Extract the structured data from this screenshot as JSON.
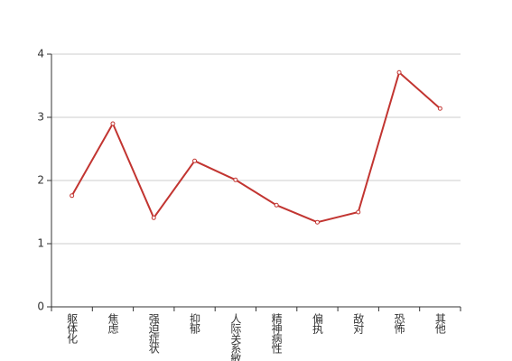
{
  "chart_data": {
    "type": "line",
    "categories": [
      "躯体化",
      "焦虑",
      "强迫症状",
      "抑郁",
      "人际关系敏感",
      "精神病性",
      "偏执",
      "敌对",
      "恐怖",
      "其他"
    ],
    "values": [
      1.76,
      2.9,
      1.41,
      2.31,
      2.01,
      1.61,
      1.34,
      1.5,
      3.71,
      3.14
    ],
    "color": "#c23531",
    "ylim": [
      0,
      4
    ],
    "yticks": [
      0,
      1,
      2,
      3,
      4
    ],
    "grid": true
  }
}
